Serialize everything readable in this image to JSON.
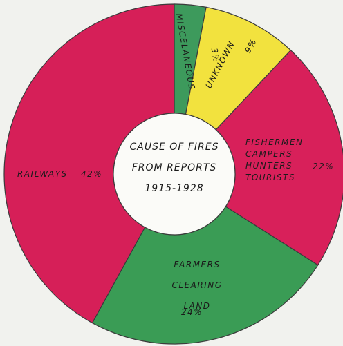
{
  "chart_data": {
    "type": "pie",
    "donut": true,
    "title": "CAUSE OF FIRES FROM REPORTS 1915-1928",
    "categories": [
      "MISCELANEOUS",
      "UNKNOWN",
      "FISHERMEN CAMPERS HUNTERS TOURISTS",
      "FARMERS CLEARING LAND",
      "RAILWAYS"
    ],
    "values": [
      3,
      9,
      22,
      24,
      42
    ],
    "value_labels": [
      "3%",
      "9%",
      "22%",
      "24%",
      "42%"
    ],
    "colors": [
      "#3d9a5c",
      "#f2e23e",
      "#d8205a",
      "#3a9c55",
      "#d61f58"
    ]
  }
}
